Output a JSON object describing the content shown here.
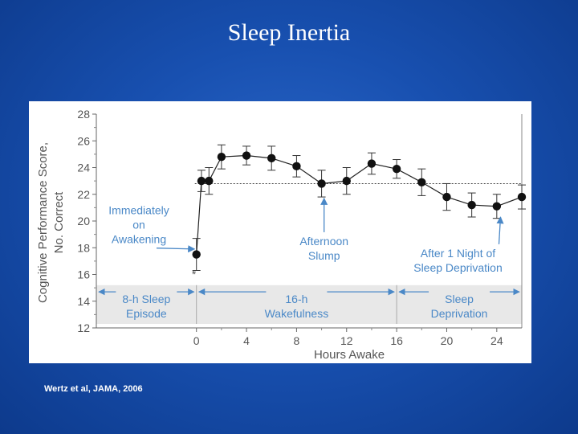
{
  "slide": {
    "title": "Sleep Inertia",
    "citation": "Wertz et al, JAMA, 2006"
  },
  "colors": {
    "background": "#1850b0",
    "annotation": "#4a88c7",
    "band": "#e8e8e8",
    "marker": "#111111"
  },
  "chart_data": {
    "type": "line",
    "title": "",
    "xlabel": "Hours Awake",
    "ylabel": [
      "Cognitive Performance Score,",
      "No. Correct"
    ],
    "xlim": [
      -8,
      26
    ],
    "ylim": [
      12,
      28
    ],
    "xticks": [
      0,
      4,
      8,
      12,
      16,
      20,
      24
    ],
    "yticks": [
      12,
      14,
      16,
      18,
      20,
      22,
      24,
      26,
      28
    ],
    "baseline": 22.8,
    "series": [
      {
        "x": [
          0,
          0.4,
          1,
          2,
          4,
          6,
          8,
          10,
          12,
          14,
          16,
          18,
          20,
          22,
          24,
          26
        ],
        "y": [
          17.5,
          23.0,
          23.0,
          24.8,
          24.9,
          24.7,
          24.1,
          22.8,
          23.0,
          24.3,
          23.9,
          22.9,
          21.8,
          21.2,
          21.1,
          21.8
        ],
        "err": [
          1.2,
          0.8,
          1.0,
          0.9,
          0.7,
          0.9,
          0.8,
          1.0,
          1.0,
          0.8,
          0.7,
          1.0,
          1.0,
          0.9,
          0.9,
          0.9
        ]
      }
    ],
    "annotations": [
      {
        "lines": [
          "Immediately",
          "on",
          "Awakening"
        ],
        "x": -4.6,
        "y": 20.5,
        "arrow_to": [
          -0.15,
          17.9
        ]
      },
      {
        "lines": [
          "Afternoon",
          "Slump"
        ],
        "x": 10.2,
        "y": 18.2,
        "arrow_to": [
          10.2,
          21.7
        ]
      },
      {
        "lines": [
          "After 1 Night of",
          "Sleep Deprivation"
        ],
        "x": 20.9,
        "y": 17.3,
        "arrow_to": [
          24.3,
          20.3
        ]
      }
    ],
    "asterisk": {
      "text": "*",
      "x": -0.2,
      "y": 16.2
    },
    "bands": [
      {
        "lines": [
          "8-h Sleep",
          "Episode"
        ],
        "from": -8,
        "to": 0
      },
      {
        "lines": [
          "16-h",
          "Wakefulness"
        ],
        "from": 0,
        "to": 16
      },
      {
        "lines": [
          "Sleep",
          "Deprivation"
        ],
        "from": 16,
        "to": 26
      }
    ],
    "band_y": [
      12.3,
      15.2
    ],
    "band_divider_y": 14.7
  }
}
